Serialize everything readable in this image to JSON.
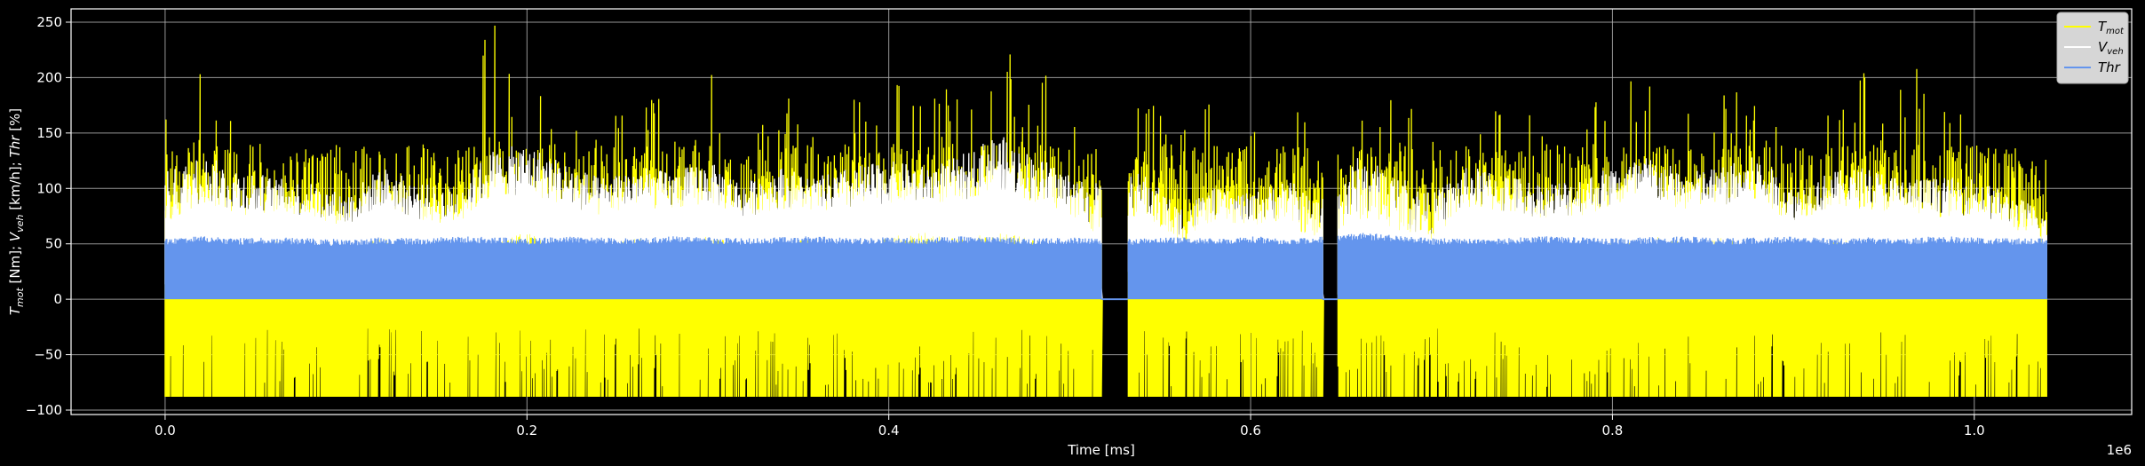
{
  "chart_data": {
    "type": "line",
    "title": "",
    "xlabel": "Time [ms]",
    "ylabel": "T_mot [Nm]; V_veh [km/h]; Thr [%]",
    "x_offset_label": "1e6",
    "xlim": [
      -0.052,
      1.087
    ],
    "ylim": [
      -104,
      262
    ],
    "x_ticks": [
      0.0,
      0.2,
      0.4,
      0.6,
      0.8,
      1.0
    ],
    "x_tick_labels": [
      "0.0",
      "0.2",
      "0.4",
      "0.6",
      "0.8",
      "1.0"
    ],
    "y_ticks": [
      -100,
      -50,
      0,
      50,
      100,
      150,
      200,
      250
    ],
    "y_tick_labels": [
      "−100",
      "−50",
      "0",
      "50",
      "100",
      "150",
      "200",
      "250"
    ],
    "grid": true,
    "legend_position": "top-right",
    "background": "#000000",
    "data_extent": {
      "x_start": 0.0,
      "x_end": 1.04,
      "gaps": [
        [
          0.518,
          0.532
        ],
        [
          0.64,
          0.648
        ]
      ]
    },
    "series": [
      {
        "name": "T_mot",
        "legend_main": "T",
        "legend_sub": "mot",
        "color": "#ffff00",
        "x": [
          0.0,
          0.02,
          0.04,
          0.06,
          0.08,
          0.1,
          0.12,
          0.14,
          0.16,
          0.17,
          0.18,
          0.19,
          0.2,
          0.22,
          0.24,
          0.26,
          0.28,
          0.3,
          0.32,
          0.34,
          0.36,
          0.38,
          0.4,
          0.42,
          0.44,
          0.46,
          0.47,
          0.48,
          0.5,
          0.515,
          0.54,
          0.56,
          0.58,
          0.6,
          0.62,
          0.635,
          0.66,
          0.68,
          0.7,
          0.72,
          0.74,
          0.76,
          0.78,
          0.8,
          0.82,
          0.84,
          0.86,
          0.88,
          0.9,
          0.92,
          0.94,
          0.96,
          0.98,
          1.0,
          1.02,
          1.04
        ],
        "max": [
          175,
          228,
          160,
          150,
          145,
          125,
          155,
          140,
          125,
          240,
          250,
          250,
          200,
          190,
          170,
          190,
          210,
          215,
          150,
          200,
          155,
          180,
          205,
          185,
          205,
          215,
          245,
          230,
          180,
          190,
          210,
          150,
          190,
          150,
          180,
          160,
          180,
          190,
          150,
          175,
          200,
          170,
          175,
          195,
          210,
          185,
          195,
          200,
          150,
          170,
          210,
          200,
          225,
          155,
          195,
          145
        ],
        "min": [
          -88,
          -88,
          -88,
          -88,
          -88,
          -88,
          -88,
          -88,
          -88,
          -88,
          -88,
          -88,
          -88,
          -88,
          -88,
          -88,
          -88,
          -88,
          -88,
          -88,
          -88,
          -88,
          -88,
          -88,
          -88,
          -88,
          -88,
          -88,
          -88,
          -88,
          -88,
          -88,
          -88,
          -88,
          -88,
          -88,
          -88,
          -88,
          -88,
          -88,
          -88,
          -88,
          -88,
          -88,
          -88,
          -88,
          -88,
          -88,
          -88,
          -88,
          -88,
          -88,
          -88,
          -88,
          -88,
          -88
        ]
      },
      {
        "name": "V_veh",
        "legend_main": "V",
        "legend_sub": "veh",
        "color": "#ffffff",
        "x": [
          0.0,
          0.02,
          0.04,
          0.06,
          0.08,
          0.1,
          0.12,
          0.14,
          0.16,
          0.18,
          0.2,
          0.22,
          0.24,
          0.26,
          0.28,
          0.3,
          0.32,
          0.34,
          0.36,
          0.38,
          0.4,
          0.42,
          0.44,
          0.46,
          0.48,
          0.5,
          0.515,
          0.54,
          0.56,
          0.58,
          0.6,
          0.62,
          0.635,
          0.66,
          0.68,
          0.7,
          0.72,
          0.74,
          0.76,
          0.78,
          0.8,
          0.82,
          0.84,
          0.86,
          0.88,
          0.9,
          0.92,
          0.94,
          0.96,
          0.98,
          1.0,
          1.02,
          1.04
        ],
        "max": [
          115,
          130,
          120,
          110,
          105,
          95,
          120,
          105,
          100,
          135,
          140,
          125,
          110,
          120,
          115,
          125,
          105,
          120,
          110,
          120,
          125,
          120,
          130,
          150,
          130,
          115,
          105,
          115,
          85,
          100,
          95,
          110,
          90,
          130,
          115,
          95,
          120,
          115,
          105,
          110,
          120,
          130,
          115,
          120,
          130,
          100,
          115,
          120,
          110,
          110,
          110,
          95,
          80
        ],
        "min": [
          0,
          35,
          20,
          40,
          35,
          30,
          40,
          30,
          25,
          35,
          40,
          35,
          30,
          40,
          35,
          40,
          35,
          35,
          40,
          30,
          40,
          45,
          35,
          40,
          35,
          30,
          0,
          30,
          0,
          35,
          30,
          25,
          0,
          0,
          0,
          5,
          35,
          30,
          35,
          30,
          35,
          40,
          35,
          40,
          30,
          35,
          40,
          35,
          35,
          30,
          35,
          30,
          0
        ]
      },
      {
        "name": "Thr",
        "legend_main": "Thr",
        "legend_sub": "",
        "color": "#6495ed",
        "x": [
          0.0,
          0.02,
          0.04,
          0.06,
          0.08,
          0.1,
          0.12,
          0.14,
          0.16,
          0.18,
          0.2,
          0.22,
          0.24,
          0.26,
          0.28,
          0.3,
          0.32,
          0.34,
          0.36,
          0.38,
          0.4,
          0.42,
          0.44,
          0.46,
          0.48,
          0.5,
          0.515,
          0.54,
          0.56,
          0.58,
          0.6,
          0.62,
          0.635,
          0.66,
          0.68,
          0.7,
          0.72,
          0.74,
          0.76,
          0.78,
          0.8,
          0.82,
          0.84,
          0.86,
          0.88,
          0.9,
          0.92,
          0.94,
          0.96,
          0.98,
          1.0,
          1.02,
          1.04
        ],
        "max": [
          55,
          57,
          55,
          56,
          55,
          54,
          56,
          55,
          57,
          56,
          55,
          57,
          56,
          55,
          57,
          56,
          55,
          56,
          57,
          55,
          56,
          55,
          57,
          56,
          55,
          56,
          55,
          55,
          56,
          55,
          57,
          55,
          56,
          60,
          58,
          55,
          56,
          55,
          57,
          56,
          55,
          56,
          57,
          55,
          56,
          57,
          55,
          56,
          55,
          57,
          56,
          55,
          55
        ],
        "min": [
          0,
          0,
          0,
          0,
          0,
          0,
          0,
          0,
          0,
          0,
          0,
          0,
          0,
          0,
          0,
          0,
          0,
          0,
          0,
          0,
          0,
          0,
          0,
          0,
          0,
          0,
          0,
          0,
          0,
          0,
          0,
          0,
          0,
          0,
          0,
          0,
          0,
          0,
          0,
          0,
          0,
          0,
          0,
          0,
          0,
          0,
          0,
          0,
          0,
          0,
          0,
          0,
          0
        ]
      }
    ]
  }
}
